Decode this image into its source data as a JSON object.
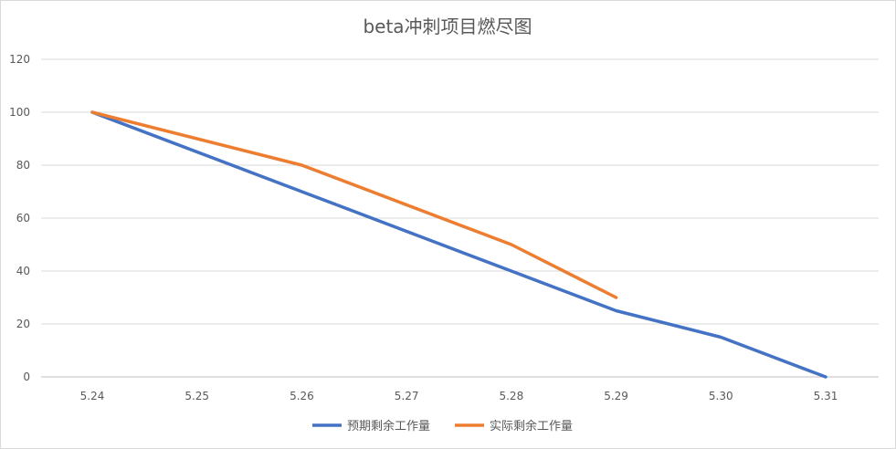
{
  "chart_data": {
    "type": "line",
    "title": "beta冲刺项目燃尽图",
    "categories": [
      "5.24",
      "5.25",
      "5.26",
      "5.27",
      "5.28",
      "5.29",
      "5.30",
      "5.31"
    ],
    "ylim": [
      0,
      120
    ],
    "yticks": [
      0,
      20,
      40,
      60,
      80,
      100,
      120
    ],
    "xlabel": "",
    "ylabel": "",
    "grid": true,
    "legend_position": "bottom",
    "series": [
      {
        "name": "预期剩余工作量",
        "color": "#4472C4",
        "values": [
          100,
          null,
          70,
          null,
          40,
          25,
          15,
          0
        ]
      },
      {
        "name": "实际剩余工作量",
        "color": "#ED7D31",
        "values": [
          100,
          null,
          80,
          null,
          50,
          30,
          null,
          null
        ]
      }
    ]
  }
}
